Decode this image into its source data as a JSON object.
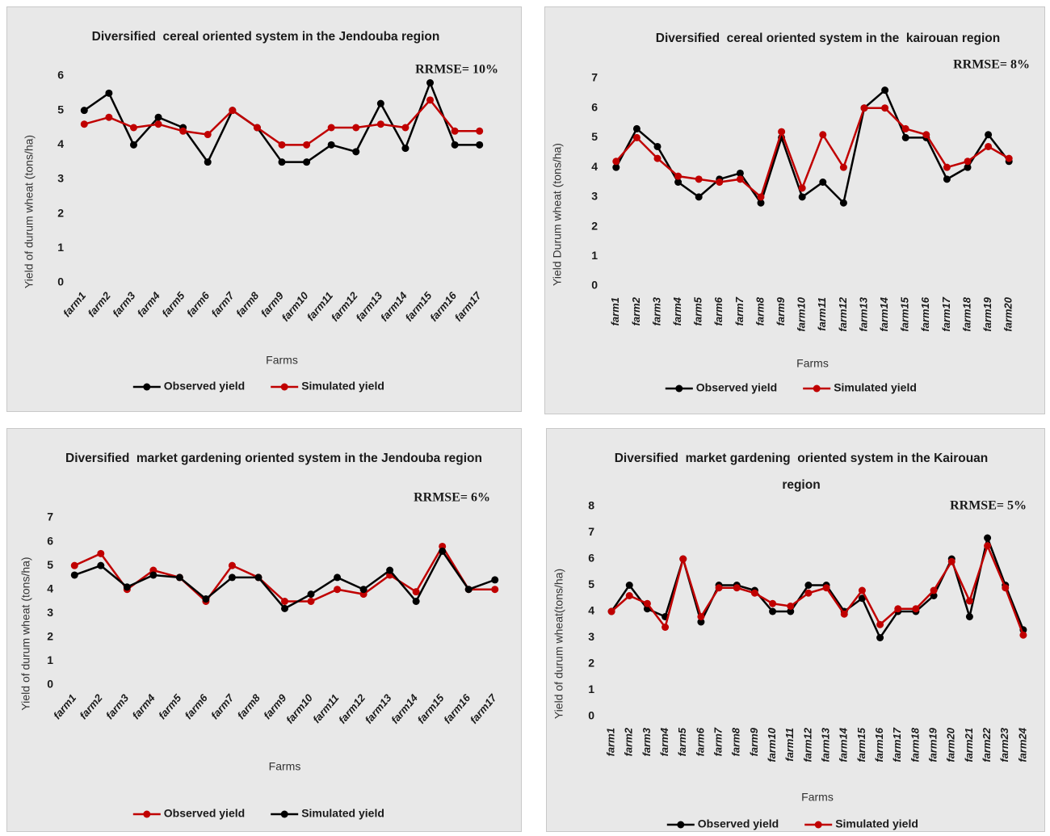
{
  "chart_data": [
    {
      "type": "line",
      "title": "Diversified  cereal oriented system in the Jendouba region",
      "annotation": "RRMSE= 10%",
      "y_label": "Yield of durum wheat (tons/ha)",
      "x_label": "Farms",
      "categories": [
        "farm1",
        "farm2",
        "farm3",
        "farm4",
        "farm5",
        "farm6",
        "farm7",
        "farm8",
        "farm9",
        "farm10",
        "farm11",
        "farm12",
        "farm13",
        "farm14",
        "farm15",
        "farm16",
        "farm17"
      ],
      "series": [
        {
          "name": "Observed yield",
          "color": "#000000",
          "values": [
            5,
            5.5,
            4,
            4.8,
            4.5,
            3.5,
            5,
            4.5,
            3.5,
            3.5,
            4,
            3.8,
            5.2,
            3.9,
            5.8,
            4,
            4
          ]
        },
        {
          "name": "Simulated yield",
          "color": "#c00000",
          "values": [
            4.6,
            4.8,
            4.5,
            4.6,
            4.4,
            4.3,
            5,
            4.5,
            4,
            4,
            4.5,
            4.5,
            4.6,
            4.5,
            5.3,
            4.4,
            4.4
          ]
        }
      ],
      "ylim": [
        0,
        6
      ],
      "yticks": [
        0,
        1,
        2,
        3,
        4,
        5,
        6
      ]
    },
    {
      "type": "line",
      "title": "Diversified  cereal oriented system in the  kairouan region",
      "annotation": "RRMSE= 8%",
      "y_label": "Yield Durum wheat (tons/ha)",
      "x_label": "Farms",
      "categories": [
        "farm1",
        "farm2",
        "farm3",
        "farm4",
        "farm5",
        "farm6",
        "farm7",
        "farm8",
        "farm9",
        "farm10",
        "farm11",
        "farm12",
        "farm13",
        "farm14",
        "farm15",
        "farm16",
        "farm17",
        "farm18",
        "farm19",
        "farm20"
      ],
      "series": [
        {
          "name": "Observed yield",
          "color": "#000000",
          "values": [
            4,
            5.3,
            4.7,
            3.5,
            3,
            3.6,
            3.8,
            2.8,
            5,
            3,
            3.5,
            2.8,
            6,
            6.6,
            5,
            5,
            3.6,
            4,
            5.1,
            4.2
          ]
        },
        {
          "name": "Simulated yield",
          "color": "#c00000",
          "values": [
            4.2,
            5,
            4.3,
            3.7,
            3.6,
            3.5,
            3.6,
            3,
            5.2,
            3.3,
            5.1,
            4,
            6,
            6,
            5.3,
            5.1,
            4,
            4.2,
            4.7,
            4.3
          ]
        }
      ],
      "ylim": [
        0,
        7
      ],
      "yticks": [
        0,
        1,
        2,
        3,
        4,
        5,
        6,
        7
      ]
    },
    {
      "type": "line",
      "title": "Diversified  market gardening oriented system in the Jendouba region",
      "annotation": "RRMSE= 6%",
      "y_label": "Yield of durum wheat (tons/ha)",
      "x_label": "Farms",
      "categories": [
        "farm1",
        "farm2",
        "farm3",
        "farm4",
        "farm5",
        "farm6",
        "farm7",
        "farm8",
        "farm9",
        "farm10",
        "farm11",
        "farm12",
        "farm13",
        "farm14",
        "farm15",
        "farm16",
        "farm17"
      ],
      "series": [
        {
          "name": "Observed yield",
          "color": "#c00000",
          "values": [
            5,
            5.5,
            4,
            4.8,
            4.5,
            3.5,
            5,
            4.5,
            3.5,
            3.5,
            4,
            3.8,
            4.6,
            3.9,
            5.8,
            4,
            4
          ]
        },
        {
          "name": "Simulated yield",
          "color": "#000000",
          "values": [
            4.6,
            5,
            4.1,
            4.6,
            4.5,
            3.6,
            4.5,
            4.5,
            3.2,
            3.8,
            4.5,
            4,
            4.8,
            3.5,
            5.6,
            4,
            4.4
          ]
        }
      ],
      "ylim": [
        0,
        7
      ],
      "yticks": [
        0,
        1,
        2,
        3,
        4,
        5,
        6,
        7
      ]
    },
    {
      "type": "line",
      "title": "Diversified  market gardening  oriented system in the Kairouan region",
      "annotation": "RRMSE= 5%",
      "y_label": "Yield of durum wheat(tons/ha)",
      "x_label": "Farms",
      "categories": [
        "farm1",
        "farm2",
        "farm3",
        "farm4",
        "farm5",
        "farm6",
        "farm7",
        "farm8",
        "farm9",
        "farm10",
        "farm11",
        "farm12",
        "farm13",
        "farm14",
        "farm15",
        "farm16",
        "farm17",
        "farm18",
        "farm19",
        "farm20",
        "farm21",
        "farm22",
        "farm23",
        "farm24"
      ],
      "series": [
        {
          "name": "Observed yield",
          "color": "#000000",
          "values": [
            4,
            5,
            4.1,
            3.8,
            6,
            3.6,
            5,
            5,
            4.8,
            4,
            4,
            5,
            5,
            4,
            4.5,
            3,
            4,
            4,
            4.6,
            6,
            3.8,
            6.8,
            5,
            3.3
          ]
        },
        {
          "name": "Simulated yield",
          "color": "#c00000",
          "values": [
            4,
            4.6,
            4.3,
            3.4,
            6,
            3.8,
            4.9,
            4.9,
            4.7,
            4.3,
            4.2,
            4.7,
            4.9,
            3.9,
            4.8,
            3.5,
            4.1,
            4.1,
            4.8,
            5.9,
            4.4,
            6.5,
            4.9,
            3.1
          ]
        }
      ],
      "ylim": [
        0,
        8
      ],
      "yticks": [
        0,
        1,
        2,
        3,
        4,
        5,
        6,
        7,
        8
      ]
    }
  ]
}
